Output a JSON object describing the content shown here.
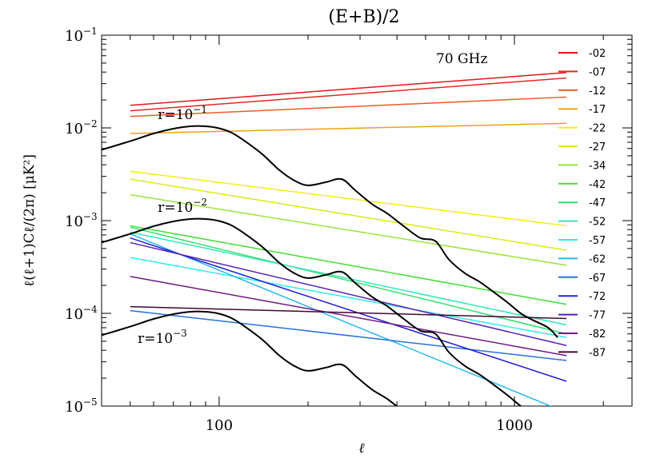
{
  "chart_data": {
    "type": "line",
    "title": "(E+B)/2",
    "xlabel": "ℓ",
    "ylabel": "ℓ(ℓ+1)Cℓ/(2π)  [μK²]",
    "xscale": "log",
    "yscale": "log",
    "xlim": [
      40,
      2500
    ],
    "ylim": [
      1e-05,
      0.1
    ],
    "grid": false,
    "legend_placement": "right",
    "x_ticks": [
      {
        "value": 100,
        "label": "100"
      },
      {
        "value": 1000,
        "label": "1000"
      }
    ],
    "y_ticks": [
      {
        "value": 0.1,
        "base": "10",
        "exp": "−1"
      },
      {
        "value": 0.01,
        "base": "10",
        "exp": "−2"
      },
      {
        "value": 0.001,
        "base": "10",
        "exp": "−3"
      },
      {
        "value": 0.0001,
        "base": "10",
        "exp": "−4"
      },
      {
        "value": 1e-05,
        "base": "10",
        "exp": "−5"
      }
    ],
    "frequency_label": "70  GHz",
    "series": [
      {
        "name": "-02",
        "color": "#e8141c",
        "x": [
          50,
          1500
        ],
        "y": [
          0.0175,
          0.0395
        ]
      },
      {
        "name": "-07",
        "color": "#e42a20",
        "x": [
          50,
          1500
        ],
        "y": [
          0.0153,
          0.0345
        ]
      },
      {
        "name": "-12",
        "color": "#ec5c24",
        "x": [
          50,
          1500
        ],
        "y": [
          0.0133,
          0.0215
        ]
      },
      {
        "name": "-17",
        "color": "#f0a018",
        "x": [
          50,
          1500
        ],
        "y": [
          0.0087,
          0.0112
        ]
      },
      {
        "name": "-22",
        "color": "#f8ec18",
        "x": [
          50,
          1500
        ],
        "y": [
          0.0034,
          0.00088
        ]
      },
      {
        "name": "-27",
        "color": "#d8ec18",
        "x": [
          50,
          1500
        ],
        "y": [
          0.0028,
          0.00048
        ]
      },
      {
        "name": "-34",
        "color": "#98e438",
        "x": [
          50,
          1500
        ],
        "y": [
          0.0019,
          0.00033
        ]
      },
      {
        "name": "-42",
        "color": "#40e030",
        "x": [
          50,
          1500
        ],
        "y": [
          0.00088,
          0.000125
        ]
      },
      {
        "name": "-47",
        "color": "#30e070",
        "x": [
          50,
          1500
        ],
        "y": [
          0.00085,
          6e-05
        ]
      },
      {
        "name": "-52",
        "color": "#30e8b8",
        "x": [
          50,
          1500
        ],
        "y": [
          0.00075,
          7.5e-05
        ]
      },
      {
        "name": "-57",
        "color": "#30ecec",
        "x": [
          50,
          1500
        ],
        "y": [
          0.0004,
          5.5e-05
        ]
      },
      {
        "name": "-62",
        "color": "#28b8f0",
        "x": [
          50,
          1500
        ],
        "y": [
          0.00072,
          8.5e-06
        ]
      },
      {
        "name": "-67",
        "color": "#2870e0",
        "x": [
          50,
          1500
        ],
        "y": [
          0.000107,
          3.1e-05
        ]
      },
      {
        "name": "-72",
        "color": "#2020d8",
        "x": [
          50,
          1500
        ],
        "y": [
          0.00065,
          1.85e-05
        ]
      },
      {
        "name": "-77",
        "color": "#5820b8",
        "x": [
          50,
          1500
        ],
        "y": [
          0.00058,
          4.5e-05
        ]
      },
      {
        "name": "-82",
        "color": "#701888",
        "x": [
          50,
          1500
        ],
        "y": [
          0.00025,
          3.5e-05
        ]
      },
      {
        "name": "-87",
        "color": "#400830",
        "x": [
          50,
          1500
        ],
        "y": [
          0.000118,
          8.8e-05
        ]
      }
    ],
    "theory_curves": [
      {
        "label_base": "r=10",
        "label_exp": "−1",
        "label_x": 62,
        "label_y": 0.0125,
        "x": [
          40,
          50,
          60,
          70,
          80,
          90,
          100,
          110,
          120,
          140,
          160,
          180,
          200,
          230,
          260,
          290,
          330,
          370,
          420,
          480,
          540,
          600,
          680,
          760,
          850,
          950,
          1050,
          1150,
          1300,
          1400
        ],
        "y": [
          0.0058,
          0.0072,
          0.0087,
          0.0098,
          0.0104,
          0.0104,
          0.0099,
          0.0089,
          0.0075,
          0.0052,
          0.0035,
          0.0027,
          0.0024,
          0.0026,
          0.0028,
          0.0021,
          0.0015,
          0.0012,
          0.00088,
          0.00065,
          0.0006,
          0.00038,
          0.00027,
          0.00022,
          0.00017,
          0.00013,
          0.0001,
          8.5e-05,
          7e-05,
          5.5e-05
        ]
      },
      {
        "label_base": "r=10",
        "label_exp": "−2",
        "label_x": 62,
        "label_y": 0.00125,
        "x": [
          40,
          50,
          60,
          70,
          80,
          90,
          100,
          110,
          120,
          140,
          160,
          180,
          200,
          230,
          260,
          290,
          330,
          370,
          420,
          480,
          540,
          600,
          680,
          760,
          850,
          950,
          1050,
          1150,
          1300,
          1400
        ],
        "y": [
          0.00058,
          0.00072,
          0.00087,
          0.00098,
          0.00104,
          0.00104,
          0.00099,
          0.00089,
          0.00075,
          0.00052,
          0.00035,
          0.00027,
          0.00024,
          0.00026,
          0.00028,
          0.00021,
          0.00015,
          0.00012,
          8.8e-05,
          6.5e-05,
          6e-05,
          3.8e-05,
          2.7e-05,
          2.2e-05,
          1.7e-05,
          1.3e-05,
          1e-05,
          8.5e-06,
          7e-06,
          5.5e-06
        ]
      },
      {
        "label_base": "r=10",
        "label_exp": "−3",
        "label_x": 53,
        "label_y": 4.8e-05,
        "x": [
          40,
          50,
          60,
          70,
          80,
          90,
          100,
          110,
          120,
          140,
          160,
          180,
          200,
          230,
          260,
          290,
          330,
          370,
          420,
          480,
          540,
          600,
          680
        ],
        "y": [
          5.8e-05,
          7.2e-05,
          8.7e-05,
          9.8e-05,
          0.000104,
          0.000104,
          9.9e-05,
          8.9e-05,
          7.5e-05,
          5.2e-05,
          3.5e-05,
          2.7e-05,
          2.4e-05,
          2.6e-05,
          2.8e-05,
          2.1e-05,
          1.5e-05,
          1.2e-05,
          8.8e-06,
          6.5e-06,
          6e-06,
          3.8e-06,
          2.7e-06
        ]
      }
    ]
  }
}
